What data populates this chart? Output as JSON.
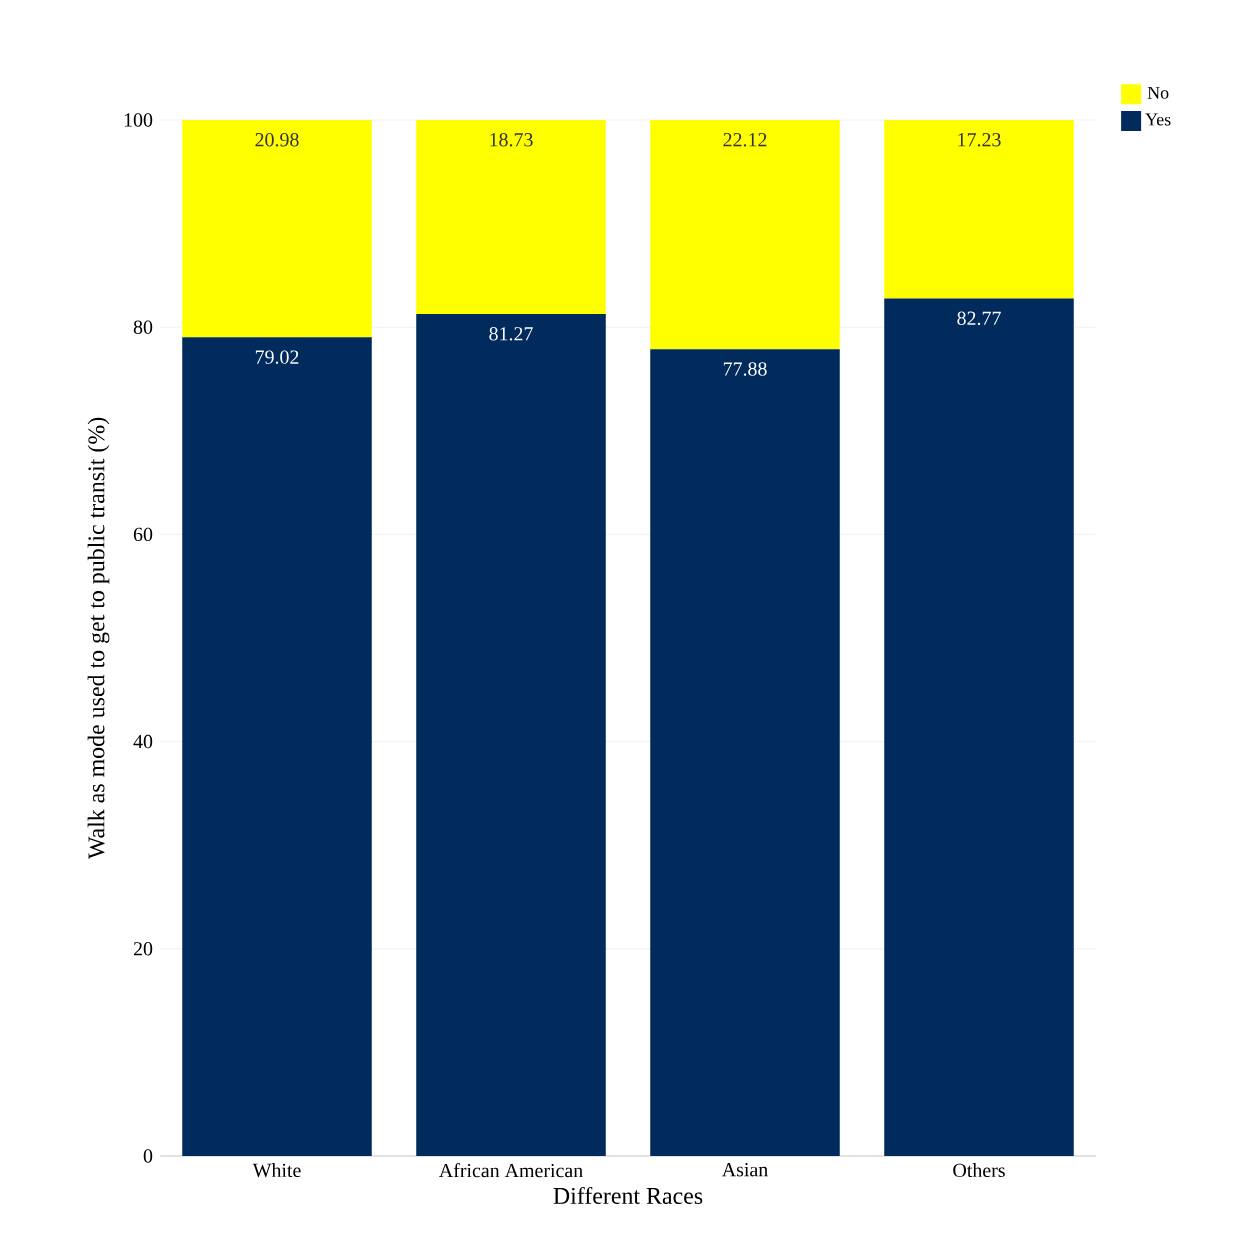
{
  "chart_data": {
    "type": "bar",
    "stacked": true,
    "xlabel": "Different Races",
    "ylabel": "Walk as mode used to get to public transit (%)",
    "categories": [
      "White",
      "African American",
      "Asian",
      "Others"
    ],
    "series": [
      {
        "name": "Yes",
        "color": "#002b5c",
        "values": [
          79.02,
          81.27,
          77.88,
          82.77
        ]
      },
      {
        "name": "No",
        "color": "#ffff00",
        "values": [
          20.98,
          18.73,
          22.12,
          17.23
        ]
      }
    ],
    "ylim": [
      0,
      100
    ],
    "yticks": [
      0,
      20,
      40,
      60,
      80,
      100
    ],
    "grid": "y",
    "legend": "top right",
    "data_labels": true
  }
}
